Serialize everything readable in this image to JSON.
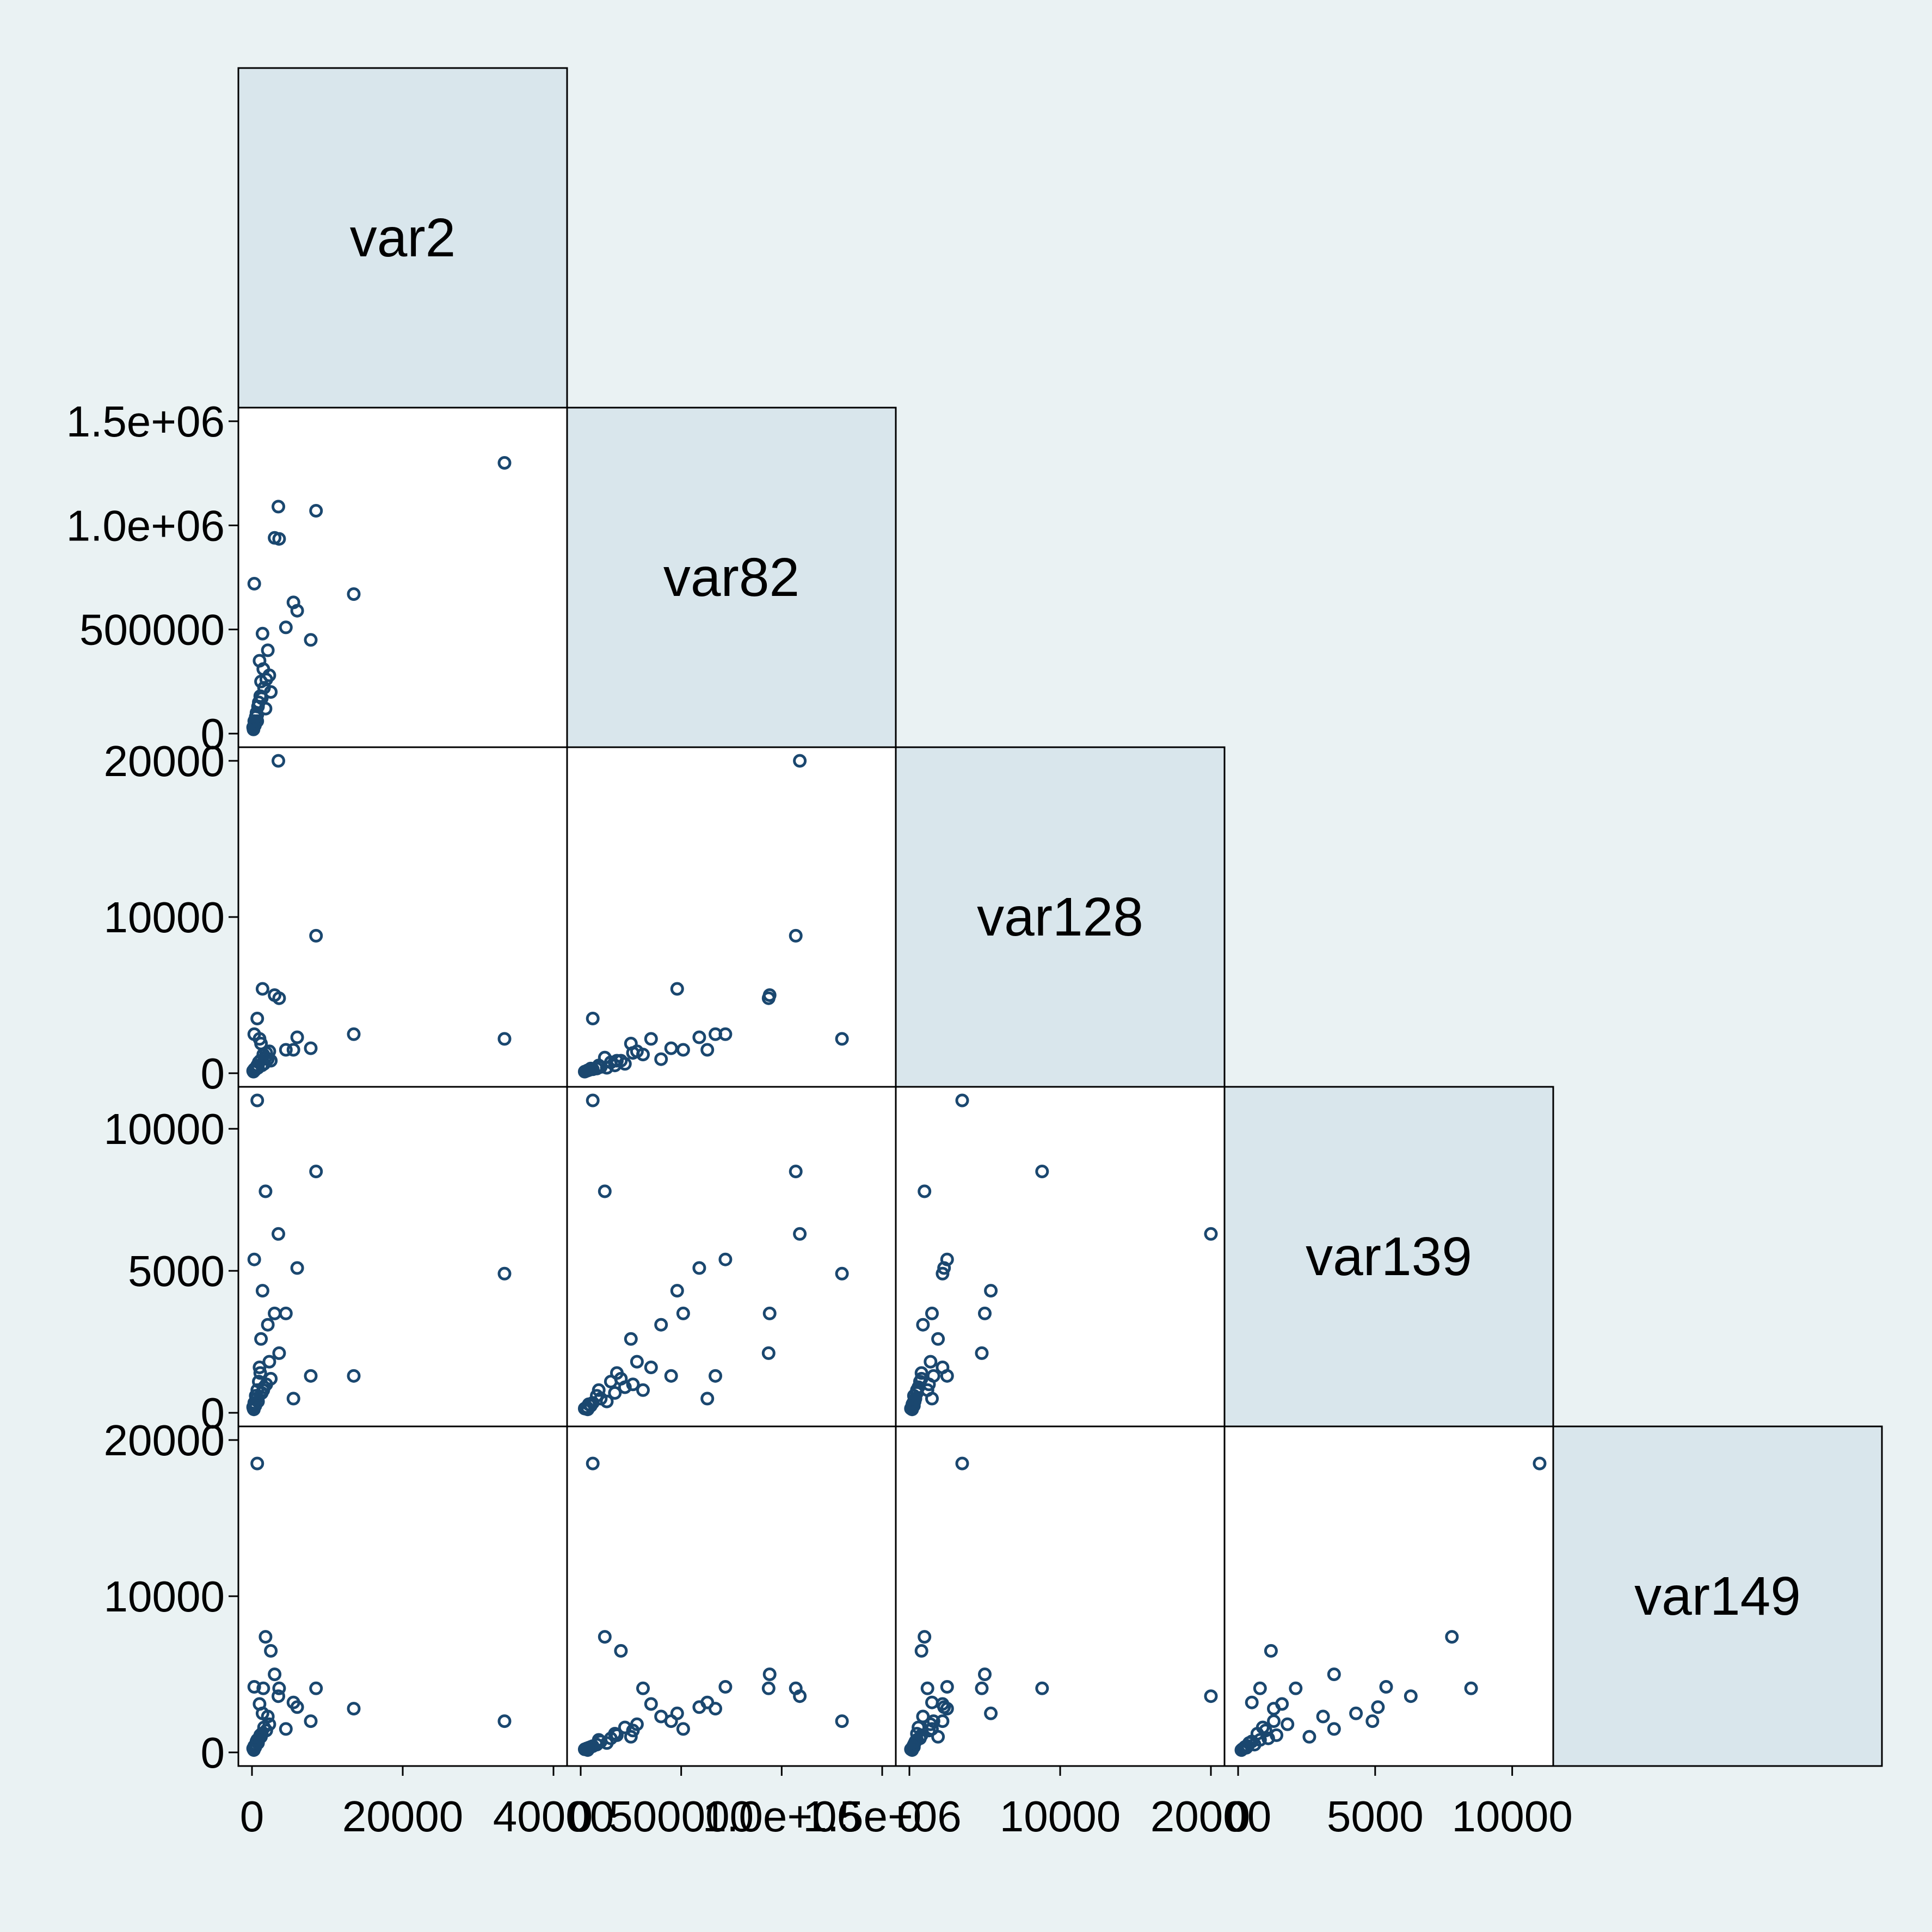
{
  "chart_data": {
    "type": "scatter",
    "subtype": "scatter-matrix-lower-half",
    "variables": [
      "var2",
      "var82",
      "var128",
      "var139",
      "var149"
    ],
    "ranges": {
      "var2": [
        0,
        40000
      ],
      "var82": [
        0,
        1500000
      ],
      "var128": [
        0,
        20000
      ],
      "var139": [
        0,
        11000
      ],
      "var149": [
        0,
        20000
      ]
    },
    "x_ticks": {
      "var2": [
        0,
        20000,
        40000
      ],
      "var82": [
        0,
        500000,
        1000000,
        1500000
      ],
      "var128": [
        0,
        10000,
        20000
      ],
      "var139": [
        0,
        5000,
        10000
      ]
    },
    "x_tick_labels": {
      "var2": [
        "0",
        "20000",
        "40000"
      ],
      "var82": [
        "0",
        "500000",
        "1.0e+06",
        "1.5e+06"
      ],
      "var128": [
        "0",
        "10000",
        "20000"
      ],
      "var139": [
        "0",
        "5000",
        "10000"
      ]
    },
    "y_ticks": {
      "var82": [
        0,
        500000,
        1000000,
        1500000
      ],
      "var128": [
        0,
        10000,
        20000
      ],
      "var139": [
        0,
        5000,
        10000
      ],
      "var149": [
        0,
        10000,
        20000
      ]
    },
    "y_tick_labels": {
      "var82": [
        "0",
        "500000",
        "1.0e+06",
        "1.5e+06"
      ],
      "var128": [
        "0",
        "10000",
        "20000"
      ],
      "var139": [
        "0",
        "5000",
        "10000"
      ],
      "var149": [
        "0",
        "10000",
        "20000"
      ]
    },
    "observations": [
      {
        "var2": 33500,
        "var82": 1300000,
        "var128": 2200,
        "var139": 4900,
        "var149": 2000
      },
      {
        "var2": 3500,
        "var82": 1090000,
        "var128": 20000,
        "var139": 6300,
        "var149": 3600
      },
      {
        "var2": 8500,
        "var82": 1070000,
        "var128": 8800,
        "var139": 8500,
        "var149": 4100
      },
      {
        "var2": 3000,
        "var82": 940000,
        "var128": 5000,
        "var139": 3500,
        "var149": 5000
      },
      {
        "var2": 3600,
        "var82": 935000,
        "var128": 4800,
        "var139": 2100,
        "var149": 4100
      },
      {
        "var2": 13500,
        "var82": 670000,
        "var128": 2500,
        "var139": 1300,
        "var149": 2800
      },
      {
        "var2": 300,
        "var82": 720000,
        "var128": 2500,
        "var139": 5400,
        "var149": 4200
      },
      {
        "var2": 5500,
        "var82": 630000,
        "var128": 1500,
        "var139": 500,
        "var149": 3200
      },
      {
        "var2": 6000,
        "var82": 590000,
        "var128": 2300,
        "var139": 5100,
        "var149": 2900
      },
      {
        "var2": 4500,
        "var82": 510000,
        "var128": 1500,
        "var139": 3500,
        "var149": 1500
      },
      {
        "var2": 7800,
        "var82": 450000,
        "var128": 1600,
        "var139": 1300,
        "var149": 2000
      },
      {
        "var2": 1400,
        "var82": 480000,
        "var128": 5400,
        "var139": 4300,
        "var149": 2500
      },
      {
        "var2": 2100,
        "var82": 400000,
        "var128": 900,
        "var139": 3100,
        "var149": 2300
      },
      {
        "var2": 1500,
        "var82": 310000,
        "var128": 1200,
        "var139": 800,
        "var149": 4100
      },
      {
        "var2": 2500,
        "var82": 200000,
        "var128": 800,
        "var139": 1200,
        "var149": 6500
      },
      {
        "var2": 1000,
        "var82": 350000,
        "var128": 2200,
        "var139": 1600,
        "var149": 3100
      },
      {
        "var2": 1800,
        "var82": 120000,
        "var128": 1000,
        "var139": 7800,
        "var149": 7400
      },
      {
        "var2": 700,
        "var82": 60000,
        "var128": 3500,
        "var139": 11000,
        "var149": 18500
      },
      {
        "var2": 1200,
        "var82": 250000,
        "var128": 1900,
        "var139": 2600,
        "var149": 1000
      },
      {
        "var2": 2300,
        "var82": 280000,
        "var128": 1400,
        "var139": 1800,
        "var149": 1800
      },
      {
        "var2": 900,
        "var82": 150000,
        "var128": 700,
        "var139": 1100,
        "var149": 900
      },
      {
        "var2": 500,
        "var82": 80000,
        "var128": 300,
        "var139": 600,
        "var149": 500
      },
      {
        "var2": 1300,
        "var82": 170000,
        "var128": 500,
        "var139": 700,
        "var149": 1200
      },
      {
        "var2": 1600,
        "var82": 220000,
        "var128": 600,
        "var139": 900,
        "var149": 1600
      },
      {
        "var2": 400,
        "var82": 40000,
        "var128": 200,
        "var139": 300,
        "var149": 300
      },
      {
        "var2": 200,
        "var82": 20000,
        "var128": 100,
        "var139": 150,
        "var149": 200
      },
      {
        "var2": 600,
        "var82": 100000,
        "var128": 400,
        "var139": 500,
        "var149": 700
      },
      {
        "var2": 800,
        "var82": 130000,
        "var128": 350,
        "var139": 400,
        "var149": 600
      },
      {
        "var2": 1100,
        "var82": 180000,
        "var128": 800,
        "var139": 1400,
        "var149": 1100
      },
      {
        "var2": 300,
        "var82": 60000,
        "var128": 250,
        "var139": 350,
        "var149": 400
      },
      {
        "var2": 150,
        "var82": 30000,
        "var128": 150,
        "var139": 200,
        "var149": 250
      },
      {
        "var2": 1900,
        "var82": 260000,
        "var128": 1300,
        "var139": 1000,
        "var149": 1400
      },
      {
        "var2": 700,
        "var82": 90000,
        "var128": 500,
        "var139": 800,
        "var149": 800
      },
      {
        "var2": 450,
        "var82": 50000,
        "var128": 300,
        "var139": 250,
        "var149": 350
      },
      {
        "var2": 250,
        "var82": 35000,
        "var128": 180,
        "var139": 120,
        "var149": 150
      }
    ]
  }
}
